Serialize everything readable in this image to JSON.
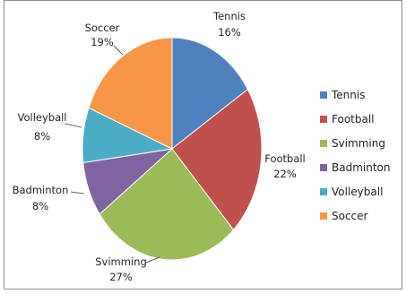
{
  "chart_data": {
    "type": "pie",
    "title": "",
    "categories": [
      "Tennis",
      "Football",
      "Svimming",
      "Badminton",
      "Volleyball",
      "Soccer"
    ],
    "values": [
      16,
      22,
      27,
      8,
      8,
      19
    ],
    "value_labels": [
      "16%",
      "22%",
      "27%",
      "8%",
      "8%",
      "19%"
    ],
    "colors": [
      "#4f81bd",
      "#c0504d",
      "#9bbb59",
      "#8064a2",
      "#4bacc6",
      "#f79646"
    ],
    "legend_position": "right",
    "legend": [
      "Tennis",
      "Football",
      "Svimming",
      "Badminton",
      "Volleyball",
      "Soccer"
    ]
  }
}
